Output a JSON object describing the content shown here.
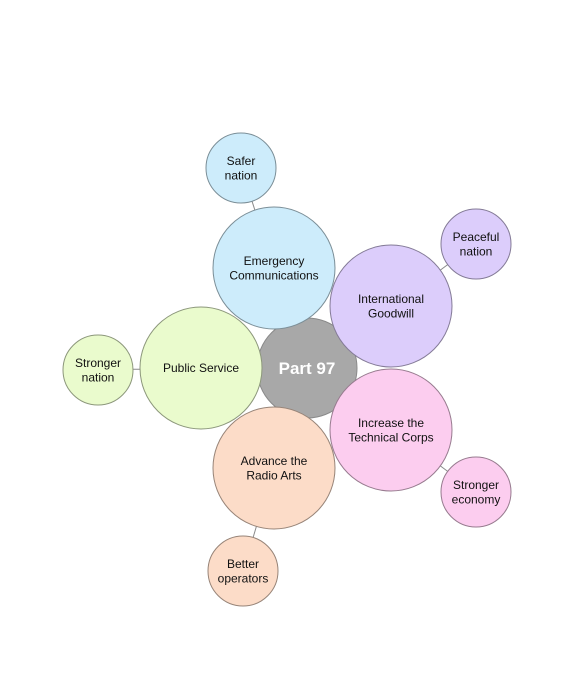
{
  "center": {
    "label": "Part 97",
    "color": "#a8a8a8"
  },
  "branches": [
    {
      "id": "emergency",
      "label": [
        "Emergency",
        "Communications"
      ],
      "color": "#cdecfb",
      "outcome": {
        "label": [
          "Safer",
          "nation"
        ],
        "color": "#cdecfb"
      }
    },
    {
      "id": "goodwill",
      "label": [
        "International",
        "Goodwill"
      ],
      "color": "#dccdfb",
      "outcome": {
        "label": [
          "Peaceful",
          "nation"
        ],
        "color": "#dccdfb"
      }
    },
    {
      "id": "technical",
      "label": [
        "Increase the",
        "Technical Corps"
      ],
      "color": "#fccdef",
      "outcome": {
        "label": [
          "Stronger",
          "economy"
        ],
        "color": "#fccdef"
      }
    },
    {
      "id": "radio-arts",
      "label": [
        "Advance the",
        "Radio Arts"
      ],
      "color": "#fcdcc8",
      "outcome": {
        "label": [
          "Better",
          "operators"
        ],
        "color": "#fcdcc8"
      }
    },
    {
      "id": "public-service",
      "label": [
        "Public Service"
      ],
      "color": "#eafbcd",
      "outcome": {
        "label": [
          "Stronger",
          "nation"
        ],
        "color": "#eafbcd"
      }
    }
  ]
}
